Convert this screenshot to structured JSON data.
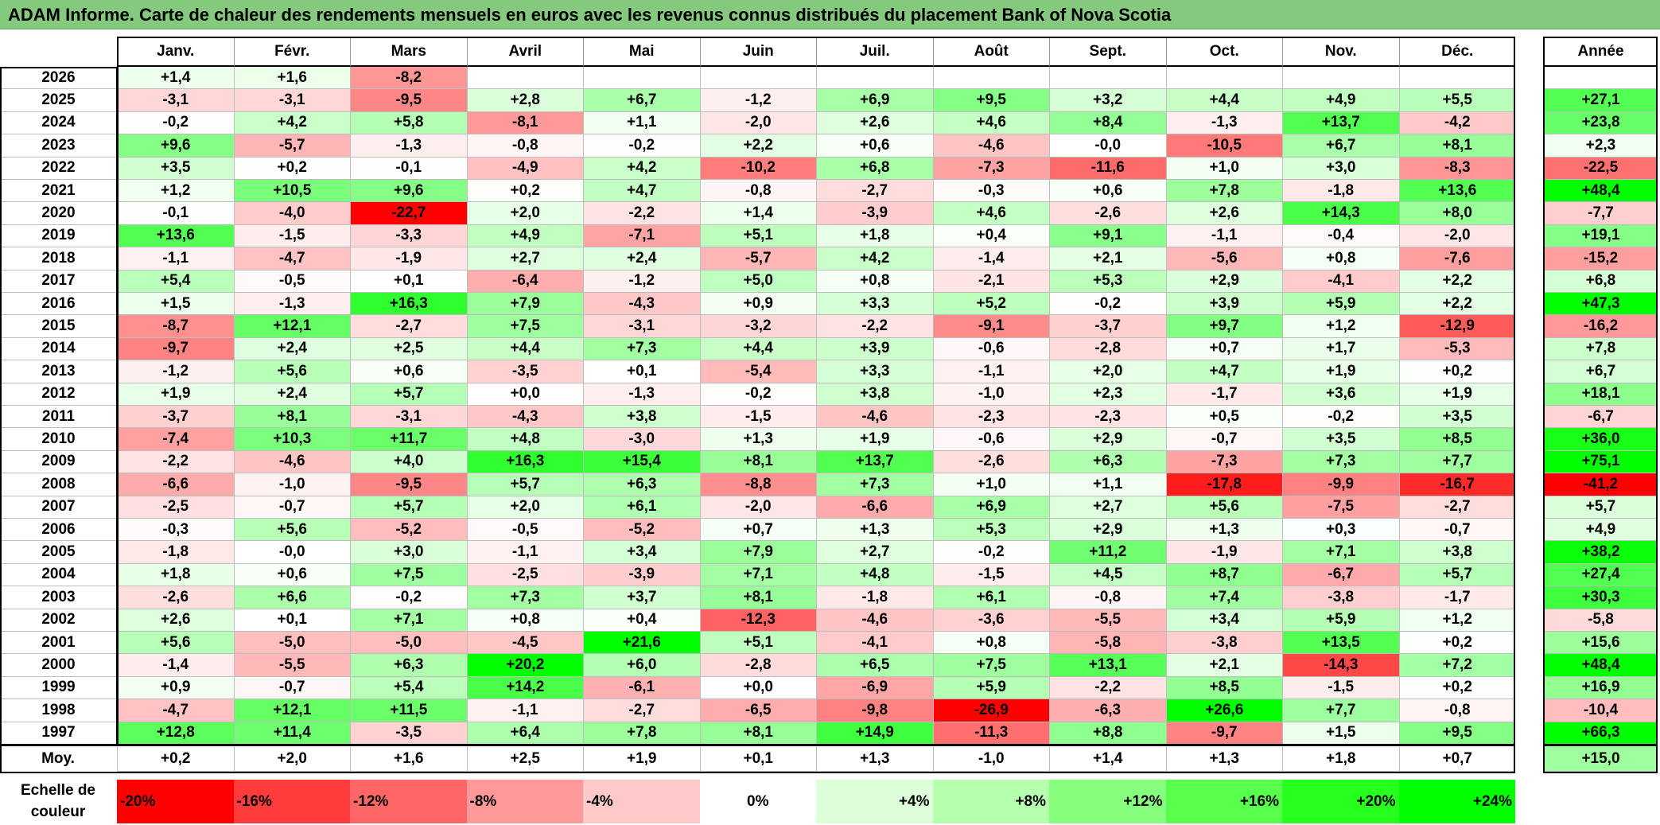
{
  "title": "ADAM Informe. Carte de chaleur des rendements mensuels en euros avec les revenus connus distribués du placement Bank of Nova Scotia",
  "colors": {
    "title_bg": "#84c97d",
    "positive_max": "#00ff00",
    "negative_max": "#ff0000",
    "neutral": "#ffffff"
  },
  "chart_data": {
    "type": "heatmap",
    "title": "ADAM Informe. Carte de chaleur des rendements mensuels en euros avec les revenus connus distribués du placement Bank of Nova Scotia",
    "months": [
      "Janv.",
      "Févr.",
      "Mars",
      "Avril",
      "Mai",
      "Juin",
      "Juil.",
      "Août",
      "Sept.",
      "Oct.",
      "Nov.",
      "Déc."
    ],
    "year_header": "Année",
    "rows": [
      {
        "year": "2026",
        "values": [
          "+1,4",
          "+1,6",
          "-8,2",
          "",
          "",
          "",
          "",
          "",
          "",
          "",
          "",
          ""
        ],
        "annual": ""
      },
      {
        "year": "2025",
        "values": [
          "-3,1",
          "-3,1",
          "-9,5",
          "+2,8",
          "+6,7",
          "-1,2",
          "+6,9",
          "+9,5",
          "+3,2",
          "+4,4",
          "+4,9",
          "+5,5"
        ],
        "annual": "+27,1"
      },
      {
        "year": "2024",
        "values": [
          "-0,2",
          "+4,2",
          "+5,8",
          "-8,1",
          "+1,1",
          "-2,0",
          "+2,6",
          "+4,6",
          "+8,4",
          "-1,3",
          "+13,7",
          "-4,2"
        ],
        "annual": "+23,8"
      },
      {
        "year": "2023",
        "values": [
          "+9,6",
          "-5,7",
          "-1,3",
          "-0,8",
          "-0,2",
          "+2,2",
          "+0,6",
          "-4,6",
          "-0,0",
          "-10,5",
          "+6,7",
          "+8,1"
        ],
        "annual": "+2,3"
      },
      {
        "year": "2022",
        "values": [
          "+3,5",
          "+0,2",
          "-0,1",
          "-4,9",
          "+4,2",
          "-10,2",
          "+6,8",
          "-7,3",
          "-11,6",
          "+1,0",
          "+3,0",
          "-8,3"
        ],
        "annual": "-22,5"
      },
      {
        "year": "2021",
        "values": [
          "+1,2",
          "+10,5",
          "+9,6",
          "+0,2",
          "+4,7",
          "-0,8",
          "-2,7",
          "-0,3",
          "+0,6",
          "+7,8",
          "-1,8",
          "+13,6"
        ],
        "annual": "+48,4"
      },
      {
        "year": "2020",
        "values": [
          "-0,1",
          "-4,0",
          "-22,7",
          "+2,0",
          "-2,2",
          "+1,4",
          "-3,9",
          "+4,6",
          "-2,6",
          "+2,6",
          "+14,3",
          "+8,0"
        ],
        "annual": "-7,7"
      },
      {
        "year": "2019",
        "values": [
          "+13,6",
          "-1,5",
          "-3,3",
          "+4,9",
          "-7,1",
          "+5,1",
          "+1,8",
          "+0,4",
          "+9,1",
          "-1,1",
          "-0,4",
          "-2,0"
        ],
        "annual": "+19,1"
      },
      {
        "year": "2018",
        "values": [
          "-1,1",
          "-4,7",
          "-1,9",
          "+2,7",
          "+2,4",
          "-5,7",
          "+4,2",
          "-1,4",
          "+2,1",
          "-5,6",
          "+0,8",
          "-7,6"
        ],
        "annual": "-15,2"
      },
      {
        "year": "2017",
        "values": [
          "+5,4",
          "-0,5",
          "+0,1",
          "-6,4",
          "-1,2",
          "+5,0",
          "+0,8",
          "-2,1",
          "+5,3",
          "+2,9",
          "-4,1",
          "+2,2"
        ],
        "annual": "+6,8"
      },
      {
        "year": "2016",
        "values": [
          "+1,5",
          "-1,3",
          "+16,3",
          "+7,9",
          "-4,3",
          "+0,9",
          "+3,3",
          "+5,2",
          "-0,2",
          "+3,9",
          "+5,9",
          "+2,2"
        ],
        "annual": "+47,3"
      },
      {
        "year": "2015",
        "values": [
          "-8,7",
          "+12,1",
          "-2,7",
          "+7,5",
          "-3,1",
          "-3,2",
          "-2,2",
          "-9,1",
          "-3,7",
          "+9,7",
          "+1,2",
          "-12,9"
        ],
        "annual": "-16,2"
      },
      {
        "year": "2014",
        "values": [
          "-9,7",
          "+2,4",
          "+2,5",
          "+4,4",
          "+7,3",
          "+4,4",
          "+3,9",
          "-0,6",
          "-2,8",
          "+0,7",
          "+1,7",
          "-5,3"
        ],
        "annual": "+7,8"
      },
      {
        "year": "2013",
        "values": [
          "-1,2",
          "+5,6",
          "+0,6",
          "-3,5",
          "+0,1",
          "-5,4",
          "+3,3",
          "-1,1",
          "+2,0",
          "+4,7",
          "+1,9",
          "+0,2"
        ],
        "annual": "+6,7"
      },
      {
        "year": "2012",
        "values": [
          "+1,9",
          "+2,4",
          "+5,7",
          "+0,0",
          "-1,3",
          "-0,2",
          "+3,8",
          "-1,0",
          "+2,3",
          "-1,7",
          "+3,6",
          "+1,9"
        ],
        "annual": "+18,1"
      },
      {
        "year": "2011",
        "values": [
          "-3,7",
          "+8,1",
          "-3,1",
          "-4,3",
          "+3,8",
          "-1,5",
          "-4,6",
          "-2,3",
          "-2,3",
          "+0,5",
          "-0,2",
          "+3,5"
        ],
        "annual": "-6,7"
      },
      {
        "year": "2010",
        "values": [
          "-7,4",
          "+10,3",
          "+11,7",
          "+4,8",
          "-3,0",
          "+1,3",
          "+1,9",
          "-0,6",
          "+2,9",
          "-0,7",
          "+3,5",
          "+8,5"
        ],
        "annual": "+36,0"
      },
      {
        "year": "2009",
        "values": [
          "-2,2",
          "-4,6",
          "+4,0",
          "+16,3",
          "+15,4",
          "+8,1",
          "+13,7",
          "-2,6",
          "+6,3",
          "-7,3",
          "+7,3",
          "+7,7"
        ],
        "annual": "+75,1"
      },
      {
        "year": "2008",
        "values": [
          "-6,6",
          "-1,0",
          "-9,5",
          "+5,7",
          "+6,3",
          "-8,8",
          "+7,3",
          "+1,0",
          "+1,1",
          "-17,8",
          "-9,9",
          "-16,7"
        ],
        "annual": "-41,2"
      },
      {
        "year": "2007",
        "values": [
          "-2,5",
          "-0,7",
          "+5,7",
          "+2,0",
          "+6,1",
          "-2,0",
          "-6,6",
          "+6,9",
          "+2,7",
          "+5,6",
          "-7,5",
          "-2,7"
        ],
        "annual": "+5,7"
      },
      {
        "year": "2006",
        "values": [
          "-0,3",
          "+5,6",
          "-5,2",
          "-0,5",
          "-5,2",
          "+0,7",
          "+1,3",
          "+5,3",
          "+2,9",
          "+1,3",
          "+0,3",
          "-0,7"
        ],
        "annual": "+4,9"
      },
      {
        "year": "2005",
        "values": [
          "-1,8",
          "-0,0",
          "+3,0",
          "-1,1",
          "+3,4",
          "+7,9",
          "+2,7",
          "-0,2",
          "+11,2",
          "-1,9",
          "+7,1",
          "+3,8"
        ],
        "annual": "+38,2"
      },
      {
        "year": "2004",
        "values": [
          "+1,8",
          "+0,6",
          "+7,5",
          "-2,5",
          "-3,9",
          "+7,1",
          "+4,8",
          "-1,5",
          "+4,5",
          "+8,7",
          "-6,7",
          "+5,7"
        ],
        "annual": "+27,4"
      },
      {
        "year": "2003",
        "values": [
          "-2,6",
          "+6,6",
          "-0,2",
          "+7,3",
          "+3,7",
          "+8,1",
          "-1,8",
          "+6,1",
          "-0,8",
          "+7,4",
          "-3,8",
          "-1,7"
        ],
        "annual": "+30,3"
      },
      {
        "year": "2002",
        "values": [
          "+2,6",
          "+0,1",
          "+7,1",
          "+0,8",
          "+0,4",
          "-12,3",
          "-4,6",
          "-3,6",
          "-5,5",
          "+3,4",
          "+5,9",
          "+1,2"
        ],
        "annual": "-5,8"
      },
      {
        "year": "2001",
        "values": [
          "+5,6",
          "-5,0",
          "-5,0",
          "-4,5",
          "+21,6",
          "+5,1",
          "-4,1",
          "+0,8",
          "-5,8",
          "-3,8",
          "+13,5",
          "+0,2"
        ],
        "annual": "+15,6"
      },
      {
        "year": "2000",
        "values": [
          "-1,4",
          "-5,5",
          "+6,3",
          "+20,2",
          "+6,0",
          "-2,8",
          "+6,5",
          "+7,5",
          "+13,1",
          "+2,1",
          "-14,3",
          "+7,2"
        ],
        "annual": "+48,4"
      },
      {
        "year": "1999",
        "values": [
          "+0,9",
          "-0,7",
          "+5,4",
          "+14,2",
          "-6,1",
          "+0,0",
          "-6,9",
          "+5,9",
          "-2,2",
          "+8,5",
          "-1,5",
          "+0,2"
        ],
        "annual": "+16,9"
      },
      {
        "year": "1998",
        "values": [
          "-4,7",
          "+12,1",
          "+11,5",
          "-1,1",
          "-2,7",
          "-6,5",
          "-9,8",
          "-26,9",
          "-6,3",
          "+26,6",
          "+7,7",
          "-0,8"
        ],
        "annual": "-10,4"
      },
      {
        "year": "1997",
        "values": [
          "+12,8",
          "+11,4",
          "-3,5",
          "+6,4",
          "+7,8",
          "+8,1",
          "+14,9",
          "-11,3",
          "+8,8",
          "-9,7",
          "+1,5",
          "+9,5"
        ],
        "annual": "+66,3"
      }
    ],
    "average": {
      "label": "Moy.",
      "values": [
        "+0,2",
        "+2,0",
        "+1,6",
        "+2,5",
        "+1,9",
        "+0,1",
        "+1,3",
        "-1,0",
        "+1,4",
        "+1,3",
        "+1,8",
        "+0,7"
      ],
      "annual": "+15,0"
    },
    "color_scale": {
      "label": "Echelle de couleur",
      "steps": [
        {
          "label": "-20%",
          "color": "#ff0000"
        },
        {
          "label": "-16%",
          "color": "#ff3b3b"
        },
        {
          "label": "-12%",
          "color": "#ff6767"
        },
        {
          "label": "-8%",
          "color": "#ff9898"
        },
        {
          "label": "-4%",
          "color": "#ffc9c9"
        },
        {
          "label": "0%",
          "color": "#ffffff"
        },
        {
          "label": "+4%",
          "color": "#dcffd9"
        },
        {
          "label": "+8%",
          "color": "#b6ffaf"
        },
        {
          "label": "+12%",
          "color": "#86ff7e"
        },
        {
          "label": "+16%",
          "color": "#58ff4d"
        },
        {
          "label": "+20%",
          "color": "#27ff1d"
        },
        {
          "label": "+24%",
          "color": "#00ff00"
        }
      ]
    }
  }
}
